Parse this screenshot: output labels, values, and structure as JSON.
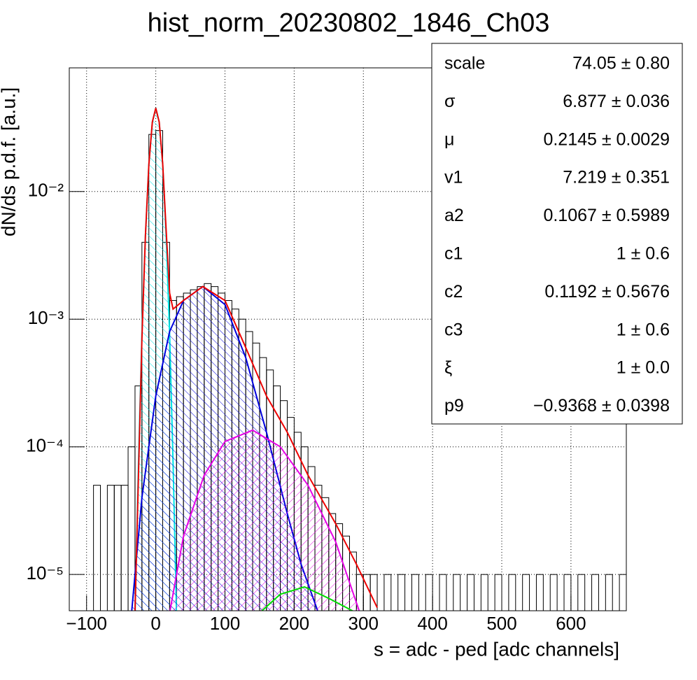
{
  "chart_data": {
    "type": "histogram",
    "title": "hist_norm_20230802_1846_Ch03",
    "xlabel": "s = adc - ped [adc channels]",
    "ylabel": "dN/ds p.d.f. [a.u.]",
    "xlim": [
      -125,
      680
    ],
    "ylim": [
      5.2e-06,
      0.093
    ],
    "log_y": true,
    "grid": true,
    "color": "#000000",
    "xticks": [
      {
        "value": -100,
        "label": "−100"
      },
      0,
      100,
      200,
      300,
      400,
      500,
      600
    ],
    "yticks": [
      {
        "value": 0.01,
        "label": "10⁻²"
      },
      {
        "value": 0.001,
        "label": "10⁻³"
      },
      {
        "value": 0.0001,
        "label": "10⁻⁴"
      },
      {
        "value": 1e-05,
        "label": "10⁻⁵"
      }
    ],
    "bins": [
      -100,
      -90,
      -80,
      -70,
      -60,
      -50,
      -40,
      -30,
      -20,
      -10,
      0,
      10,
      20,
      30,
      40,
      50,
      60,
      70,
      80,
      90,
      100,
      110,
      120,
      130,
      140,
      150,
      160,
      170,
      180,
      190,
      200,
      210,
      220,
      230,
      240,
      250,
      260,
      270,
      280,
      290,
      300,
      310,
      320,
      330,
      340,
      350,
      360,
      370,
      380,
      390,
      400,
      410,
      420,
      430,
      440,
      450,
      460,
      470,
      480,
      490,
      500,
      510,
      520,
      530,
      540,
      550,
      560,
      570,
      580,
      590,
      600,
      610,
      620,
      630,
      640,
      650,
      660,
      670,
      680
    ],
    "counts": [
      0,
      5e-05,
      0,
      5e-05,
      5e-05,
      5e-05,
      0.0001,
      0.0003,
      0.004,
      0.028,
      0.03,
      0.004,
      0.0014,
      0.0015,
      0.0016,
      0.0017,
      0.0018,
      0.0019,
      0.0018,
      0.0016,
      0.0014,
      0.0012,
      0.001,
      0.0008,
      0.00065,
      0.0005,
      0.0004,
      0.0003,
      0.00023,
      0.00017,
      0.00013,
      0.0001,
      7e-05,
      5e-05,
      4e-05,
      3e-05,
      2.5e-05,
      2e-05,
      1.5e-05,
      1e-05,
      1e-05,
      1e-05,
      0,
      1e-05,
      0,
      1e-05,
      0,
      1e-05,
      0,
      1e-05,
      0,
      1e-05,
      0,
      1e-05,
      0,
      1e-05,
      0,
      1e-05,
      0,
      1e-05,
      0,
      1e-05,
      0,
      1e-05,
      0,
      1e-05,
      0,
      1e-05,
      0,
      1e-05,
      0,
      1e-05,
      0,
      1e-05,
      0,
      1e-05,
      0,
      1e-05
    ],
    "series": [
      {
        "color": "#00e5e5",
        "hatched": true,
        "x": [
          -30,
          -25,
          -20,
          -15,
          -10,
          -5,
          0,
          5,
          10,
          15,
          20,
          25,
          30
        ],
        "values": [
          4.6e-06,
          7.6e-05,
          0.00076,
          0.0045,
          0.0162,
          0.0349,
          0.045,
          0.0349,
          0.0162,
          0.0045,
          0.00076,
          7.6e-05,
          4.6e-06
        ]
      },
      {
        "color": "#0000dd",
        "hatched": true,
        "x": [
          -35,
          -20,
          0,
          20,
          40,
          68,
          100,
          130,
          160,
          190,
          210,
          235
        ],
        "values": [
          5e-06,
          4e-05,
          0.00025,
          0.0008,
          0.0014,
          0.0018,
          0.0013,
          0.0005,
          0.00013,
          3e-05,
          1.2e-05,
          5e-06
        ]
      },
      {
        "color": "#e500e5",
        "hatched": true,
        "x": [
          20,
          40,
          70,
          100,
          140,
          180,
          220,
          260,
          295
        ],
        "values": [
          5e-06,
          2e-05,
          6e-05,
          0.00011,
          0.000135,
          0.0001,
          5e-05,
          1.8e-05,
          5e-06
        ]
      },
      {
        "color": "#00dd00",
        "hatched": false,
        "x": [
          150,
          180,
          215,
          250,
          290
        ],
        "values": [
          5e-06,
          7e-06,
          8e-06,
          6.5e-06,
          5e-06
        ]
      },
      {
        "color": "#ee0000",
        "hatched": false,
        "x": [
          -30,
          -20,
          -15,
          -10,
          -5,
          0,
          5,
          10,
          15,
          20,
          25,
          40,
          68,
          100,
          130,
          160,
          190,
          220,
          260,
          290,
          320
        ],
        "values": [
          5e-06,
          0.0007,
          0.0045,
          0.0162,
          0.035,
          0.045,
          0.035,
          0.0165,
          0.005,
          0.0016,
          0.0012,
          0.0014,
          0.0018,
          0.0014,
          0.0006,
          0.00025,
          0.00013,
          6e-05,
          2.5e-05,
          1.2e-05,
          5.5e-06
        ]
      }
    ],
    "stats": [
      {
        "label": "scale",
        "value": "74.05 ± 0.80"
      },
      {
        "label": "σ",
        "value": "6.877 ± 0.036"
      },
      {
        "label": "μ",
        "value": "0.2145 ± 0.0029"
      },
      {
        "label": "v1",
        "value": "7.219 ± 0.351"
      },
      {
        "label": "a2",
        "value": "0.1067 ± 0.5989"
      },
      {
        "label": "c1",
        "value": "1 ± 0.6"
      },
      {
        "label": "c2",
        "value": "0.1192 ± 0.5676"
      },
      {
        "label": "c3",
        "value": "1 ± 0.6"
      },
      {
        "label": "ξ",
        "value": "1 ± 0.0"
      },
      {
        "label": "p9",
        "value": "−0.9368 ± 0.0398"
      }
    ]
  }
}
